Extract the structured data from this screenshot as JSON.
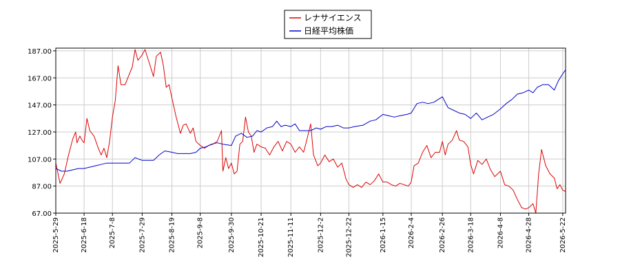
{
  "chart_data": {
    "type": "line",
    "title": "",
    "xlabel": "",
    "ylabel": "",
    "ylim": [
      67,
      189
    ],
    "yticks": [
      "187.00",
      "167.00",
      "147.00",
      "127.00",
      "107.00",
      "87.00",
      "67.00"
    ],
    "ytick_values": [
      187,
      167,
      147,
      127,
      107,
      87,
      67
    ],
    "xticks": [
      "2025-5-29",
      "2025-6-18",
      "2025-7-8",
      "2025-7-29",
      "2025-8-19",
      "2025-9-8",
      "2025-9-30",
      "2025-10-21",
      "2025-11-11",
      "2025-12-2",
      "2025-12-22",
      "2026-1-15",
      "2026-2-4",
      "2026-2-26",
      "2026-3-18",
      "2026-4-8",
      "2026-4-28",
      "2026-5-22"
    ],
    "grid": true,
    "legend": {
      "placement": "top-center",
      "entries": [
        "レナサイエンス",
        "日経平均株価"
      ]
    },
    "series": [
      {
        "name": "レナサイエンス",
        "color": "#dd0000",
        "points": [
          [
            "2025-5-29",
            104
          ],
          [
            "2025-6-1",
            89
          ],
          [
            "2025-6-4",
            96
          ],
          [
            "2025-6-7",
            110
          ],
          [
            "2025-6-10",
            122
          ],
          [
            "2025-6-12",
            127
          ],
          [
            "2025-6-13",
            119
          ],
          [
            "2025-6-15",
            124
          ],
          [
            "2025-6-17",
            120
          ],
          [
            "2025-6-18",
            119
          ],
          [
            "2025-6-20",
            137
          ],
          [
            "2025-6-22",
            128
          ],
          [
            "2025-6-25",
            124
          ],
          [
            "2025-6-28",
            115
          ],
          [
            "2025-6-30",
            110
          ],
          [
            "2025-7-2",
            115
          ],
          [
            "2025-7-4",
            108
          ],
          [
            "2025-7-6",
            120
          ],
          [
            "2025-7-8",
            138
          ],
          [
            "2025-7-10",
            150
          ],
          [
            "2025-7-12",
            176
          ],
          [
            "2025-7-14",
            162
          ],
          [
            "2025-7-17",
            162
          ],
          [
            "2025-7-20",
            170
          ],
          [
            "2025-7-22",
            175
          ],
          [
            "2025-7-24",
            188
          ],
          [
            "2025-7-26",
            180
          ],
          [
            "2025-7-29",
            184
          ],
          [
            "2025-7-31",
            188
          ],
          [
            "2025-8-3",
            178
          ],
          [
            "2025-8-6",
            168
          ],
          [
            "2025-8-8",
            183
          ],
          [
            "2025-8-11",
            186
          ],
          [
            "2025-8-13",
            176
          ],
          [
            "2025-8-15",
            160
          ],
          [
            "2025-8-17",
            162
          ],
          [
            "2025-8-19",
            152
          ],
          [
            "2025-8-22",
            138
          ],
          [
            "2025-8-25",
            126
          ],
          [
            "2025-8-27",
            132
          ],
          [
            "2025-8-29",
            133
          ],
          [
            "2025-9-1",
            126
          ],
          [
            "2025-9-3",
            130
          ],
          [
            "2025-9-5",
            120
          ],
          [
            "2025-9-8",
            117
          ],
          [
            "2025-9-11",
            115
          ],
          [
            "2025-9-14",
            117
          ],
          [
            "2025-9-17",
            118
          ],
          [
            "2025-9-20",
            120
          ],
          [
            "2025-9-23",
            128
          ],
          [
            "2025-9-24",
            98
          ],
          [
            "2025-9-26",
            108
          ],
          [
            "2025-9-28",
            100
          ],
          [
            "2025-9-30",
            104
          ],
          [
            "2025-10-2",
            96
          ],
          [
            "2025-10-4",
            98
          ],
          [
            "2025-10-6",
            118
          ],
          [
            "2025-10-8",
            120
          ],
          [
            "2025-10-10",
            138
          ],
          [
            "2025-10-12",
            127
          ],
          [
            "2025-10-14",
            124
          ],
          [
            "2025-10-16",
            112
          ],
          [
            "2025-10-18",
            118
          ],
          [
            "2025-10-21",
            116
          ],
          [
            "2025-10-24",
            115
          ],
          [
            "2025-10-27",
            110
          ],
          [
            "2025-10-30",
            116
          ],
          [
            "2025-11-2",
            120
          ],
          [
            "2025-11-5",
            113
          ],
          [
            "2025-11-8",
            120
          ],
          [
            "2025-11-11",
            118
          ],
          [
            "2025-11-14",
            112
          ],
          [
            "2025-11-17",
            116
          ],
          [
            "2025-11-20",
            112
          ],
          [
            "2025-11-22",
            120
          ],
          [
            "2025-11-25",
            133
          ],
          [
            "2025-11-27",
            110
          ],
          [
            "2025-11-30",
            102
          ],
          [
            "2025-12-2",
            104
          ],
          [
            "2025-12-5",
            110
          ],
          [
            "2025-12-8",
            105
          ],
          [
            "2025-12-11",
            107
          ],
          [
            "2025-12-14",
            101
          ],
          [
            "2025-12-17",
            104
          ],
          [
            "2025-12-20",
            92
          ],
          [
            "2025-12-22",
            88
          ],
          [
            "2025-12-25",
            86
          ],
          [
            "2025-12-28",
            88
          ],
          [
            "2025-12-31",
            86
          ],
          [
            "2026-1-3",
            90
          ],
          [
            "2026-1-6",
            88
          ],
          [
            "2026-1-9",
            91
          ],
          [
            "2026-1-12",
            96
          ],
          [
            "2026-1-15",
            90
          ],
          [
            "2026-1-18",
            90
          ],
          [
            "2026-1-21",
            88
          ],
          [
            "2026-1-24",
            87
          ],
          [
            "2026-1-27",
            89
          ],
          [
            "2026-1-30",
            88
          ],
          [
            "2026-2-2",
            87
          ],
          [
            "2026-2-4",
            90
          ],
          [
            "2026-2-6",
            102
          ],
          [
            "2026-2-9",
            104
          ],
          [
            "2026-2-12",
            112
          ],
          [
            "2026-2-15",
            117
          ],
          [
            "2026-2-18",
            108
          ],
          [
            "2026-2-21",
            112
          ],
          [
            "2026-2-24",
            112
          ],
          [
            "2026-2-26",
            120
          ],
          [
            "2026-2-28",
            110
          ],
          [
            "2026-3-2",
            118
          ],
          [
            "2026-3-5",
            121
          ],
          [
            "2026-3-8",
            128
          ],
          [
            "2026-3-10",
            121
          ],
          [
            "2026-3-13",
            120
          ],
          [
            "2026-3-16",
            116
          ],
          [
            "2026-3-18",
            103
          ],
          [
            "2026-3-20",
            96
          ],
          [
            "2026-3-23",
            106
          ],
          [
            "2026-3-26",
            103
          ],
          [
            "2026-3-29",
            107
          ],
          [
            "2026-4-1",
            99
          ],
          [
            "2026-4-4",
            94
          ],
          [
            "2026-4-8",
            98
          ],
          [
            "2026-4-11",
            88
          ],
          [
            "2026-4-14",
            87
          ],
          [
            "2026-4-17",
            84
          ],
          [
            "2026-4-20",
            77
          ],
          [
            "2026-4-23",
            71
          ],
          [
            "2026-4-26",
            70
          ],
          [
            "2026-4-28",
            71
          ],
          [
            "2026-5-1",
            74
          ],
          [
            "2026-5-3",
            67
          ],
          [
            "2026-5-5",
            96
          ],
          [
            "2026-5-7",
            114
          ],
          [
            "2026-5-10",
            102
          ],
          [
            "2026-5-13",
            96
          ],
          [
            "2026-5-16",
            93
          ],
          [
            "2026-5-18",
            85
          ],
          [
            "2026-5-20",
            88
          ],
          [
            "2026-5-22",
            84
          ],
          [
            "2026-5-24",
            83
          ]
        ]
      },
      {
        "name": "日経平均株価",
        "color": "#0000cc",
        "points": [
          [
            "2025-5-29",
            100
          ],
          [
            "2025-6-2",
            98
          ],
          [
            "2025-6-6",
            98
          ],
          [
            "2025-6-10",
            99
          ],
          [
            "2025-6-14",
            100
          ],
          [
            "2025-6-18",
            100
          ],
          [
            "2025-6-22",
            101
          ],
          [
            "2025-6-26",
            102
          ],
          [
            "2025-6-30",
            103
          ],
          [
            "2025-7-4",
            104
          ],
          [
            "2025-7-8",
            104
          ],
          [
            "2025-7-12",
            104
          ],
          [
            "2025-7-16",
            104
          ],
          [
            "2025-7-20",
            104
          ],
          [
            "2025-7-24",
            108
          ],
          [
            "2025-7-29",
            106
          ],
          [
            "2025-8-2",
            106
          ],
          [
            "2025-8-6",
            106
          ],
          [
            "2025-8-10",
            110
          ],
          [
            "2025-8-14",
            113
          ],
          [
            "2025-8-19",
            112
          ],
          [
            "2025-8-23",
            111
          ],
          [
            "2025-8-27",
            111
          ],
          [
            "2025-9-1",
            111
          ],
          [
            "2025-9-5",
            112
          ],
          [
            "2025-9-8",
            115
          ],
          [
            "2025-9-12",
            116
          ],
          [
            "2025-9-16",
            118
          ],
          [
            "2025-9-20",
            119
          ],
          [
            "2025-9-24",
            118
          ],
          [
            "2025-9-30",
            117
          ],
          [
            "2025-10-3",
            124
          ],
          [
            "2025-10-7",
            126
          ],
          [
            "2025-10-11",
            123
          ],
          [
            "2025-10-15",
            124
          ],
          [
            "2025-10-18",
            128
          ],
          [
            "2025-10-21",
            127
          ],
          [
            "2025-10-25",
            130
          ],
          [
            "2025-10-29",
            131
          ],
          [
            "2025-11-1",
            135
          ],
          [
            "2025-11-4",
            131
          ],
          [
            "2025-11-7",
            132
          ],
          [
            "2025-11-11",
            131
          ],
          [
            "2025-11-14",
            133
          ],
          [
            "2025-11-17",
            128
          ],
          [
            "2025-11-21",
            128
          ],
          [
            "2025-11-25",
            128
          ],
          [
            "2025-11-29",
            130
          ],
          [
            "2025-12-2",
            129
          ],
          [
            "2025-12-6",
            131
          ],
          [
            "2025-12-10",
            131
          ],
          [
            "2025-12-14",
            132
          ],
          [
            "2025-12-18",
            130
          ],
          [
            "2025-12-22",
            130
          ],
          [
            "2025-12-26",
            131
          ],
          [
            "2026-1-1",
            132
          ],
          [
            "2026-1-6",
            135
          ],
          [
            "2026-1-10",
            136
          ],
          [
            "2026-1-15",
            140
          ],
          [
            "2026-1-19",
            139
          ],
          [
            "2026-1-23",
            138
          ],
          [
            "2026-1-27",
            139
          ],
          [
            "2026-2-1",
            140
          ],
          [
            "2026-2-4",
            141
          ],
          [
            "2026-2-8",
            148
          ],
          [
            "2026-2-12",
            149
          ],
          [
            "2026-2-16",
            148
          ],
          [
            "2026-2-20",
            149
          ],
          [
            "2026-2-26",
            153
          ],
          [
            "2026-3-2",
            145
          ],
          [
            "2026-3-6",
            143
          ],
          [
            "2026-3-10",
            141
          ],
          [
            "2026-3-14",
            140
          ],
          [
            "2026-3-18",
            137
          ],
          [
            "2026-3-22",
            141
          ],
          [
            "2026-3-26",
            136
          ],
          [
            "2026-3-30",
            138
          ],
          [
            "2026-4-3",
            140
          ],
          [
            "2026-4-8",
            144
          ],
          [
            "2026-4-12",
            148
          ],
          [
            "2026-4-16",
            151
          ],
          [
            "2026-4-20",
            155
          ],
          [
            "2026-4-24",
            156
          ],
          [
            "2026-4-28",
            158
          ],
          [
            "2026-5-1",
            156
          ],
          [
            "2026-5-4",
            160
          ],
          [
            "2026-5-8",
            162
          ],
          [
            "2026-5-12",
            162
          ],
          [
            "2026-5-16",
            158
          ],
          [
            "2026-5-19",
            165
          ],
          [
            "2026-5-22",
            170
          ],
          [
            "2026-5-24",
            173
          ]
        ]
      }
    ]
  }
}
